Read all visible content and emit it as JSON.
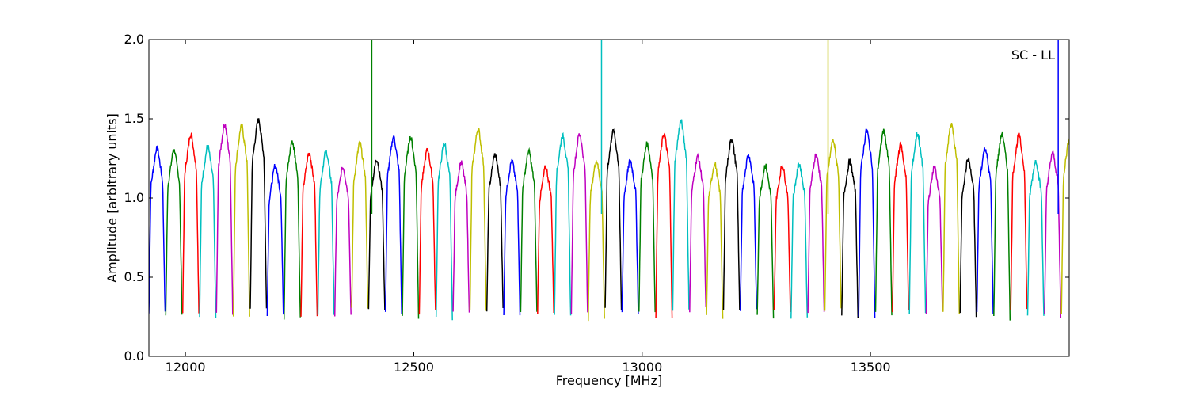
{
  "chart_data": {
    "type": "line",
    "title": "",
    "xlabel": "Frequency [MHz]",
    "ylabel": "Amplitude [arbitrary units]",
    "annotation": "SC - LL",
    "xlim": [
      11920,
      13935
    ],
    "ylim": [
      0.0,
      2.0
    ],
    "x_ticks": [
      12000,
      12500,
      13000,
      13500
    ],
    "y_ticks": [
      "0.0",
      "0.5",
      "1.0",
      "1.5",
      "2.0"
    ],
    "grid": false,
    "legend": "none",
    "color_cycle": [
      "#0000ff",
      "#008000",
      "#ff0000",
      "#00bfbf",
      "#bf00bf",
      "#bfbf00",
      "#000000"
    ],
    "channel": {
      "start_mhz": 11920,
      "width_mhz": 37,
      "count": 55,
      "trough_level": 0.27,
      "peaks": [
        1.31,
        1.3,
        1.4,
        1.32,
        1.46,
        1.45,
        1.49,
        1.2,
        1.35,
        1.28,
        1.29,
        1.19,
        1.34,
        1.24,
        1.38,
        1.38,
        1.3,
        1.34,
        1.22,
        1.43,
        1.27,
        1.23,
        1.29,
        1.19,
        1.39,
        1.4,
        1.23,
        1.42,
        1.23,
        1.34,
        1.4,
        1.48,
        1.26,
        1.21,
        1.37,
        1.27,
        1.2,
        1.2,
        1.21,
        1.27,
        1.36,
        1.23,
        1.42,
        1.42,
        1.33,
        1.4,
        1.19,
        1.46,
        1.24,
        1.31,
        1.4,
        1.39,
        1.23,
        1.28,
        1.38
      ]
    },
    "spikes": [
      {
        "x": 12408,
        "y": 2.0,
        "color": "#008000"
      },
      {
        "x": 12911,
        "y": 2.0,
        "color": "#00bfbf"
      },
      {
        "x": 13407,
        "y": 2.0,
        "color": "#bfbf00"
      },
      {
        "x": 13911,
        "y": 2.0,
        "color": "#0000ff"
      }
    ]
  }
}
